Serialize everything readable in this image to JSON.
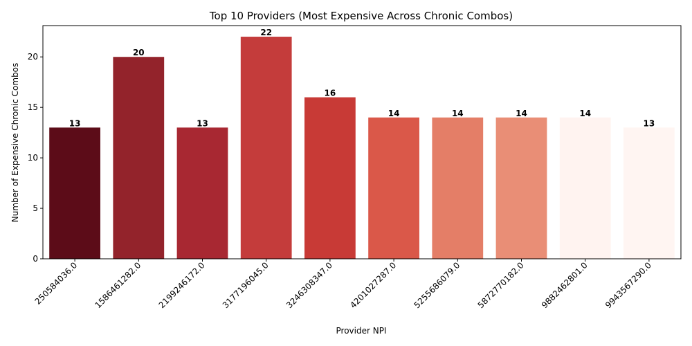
{
  "chart_data": {
    "type": "bar",
    "title": "Top 10 Providers (Most Expensive Across Chronic Combos)",
    "xlabel": "Provider NPI",
    "ylabel": "Number of Expensive Chronic Combos",
    "ylim": [
      0,
      23.1
    ],
    "yticks": [
      0,
      5,
      10,
      15,
      20
    ],
    "grid": false,
    "categories": [
      "250584036.0",
      "1586461282.0",
      "2199246172.0",
      "3177196045.0",
      "3246308347.0",
      "4201027287.0",
      "5255686079.0",
      "5872770182.0",
      "9882462801.0",
      "9943567290.0"
    ],
    "values": [
      13,
      20,
      13,
      22,
      16,
      14,
      14,
      14,
      14,
      13
    ],
    "bar_colors": [
      "#5c0c18",
      "#93232b",
      "#a82832",
      "#c43c3b",
      "#c83a36",
      "#da5849",
      "#e47e67",
      "#e98e76",
      "#fff3f0",
      "#fff5f2"
    ]
  }
}
